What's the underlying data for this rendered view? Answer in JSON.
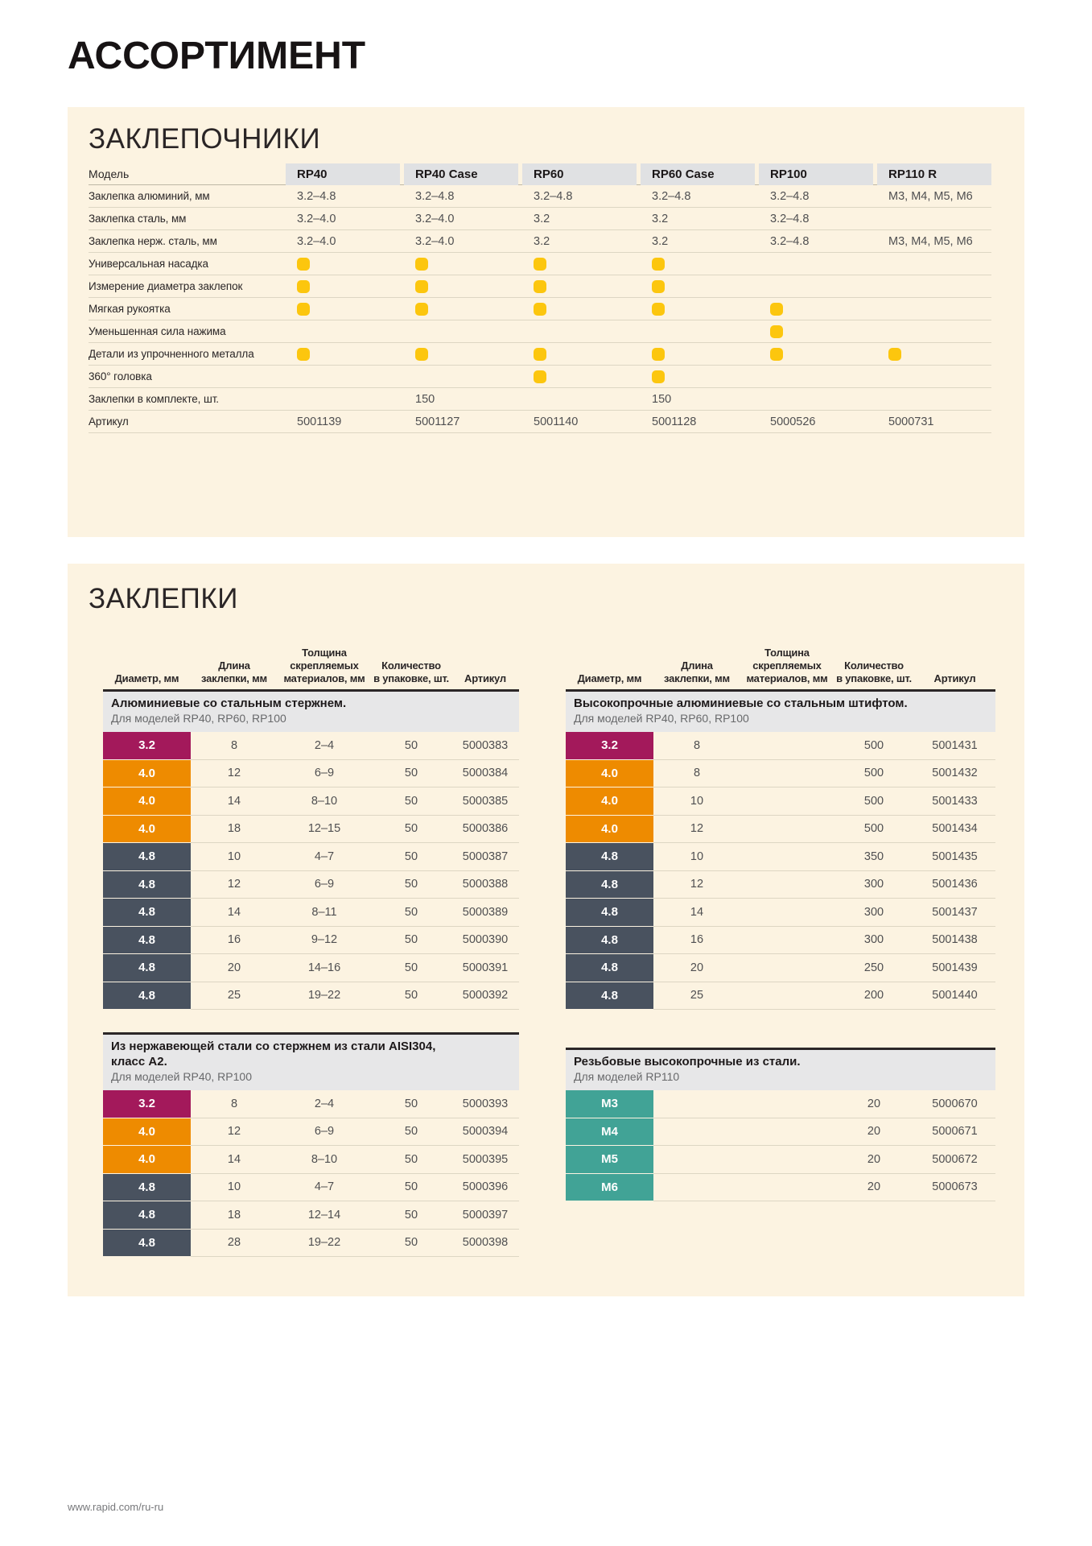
{
  "page": {
    "title": "АССОРТИМЕНТ",
    "footer": "www.rapid.com/ru-ru"
  },
  "colors": {
    "magenta": "#a3195b",
    "orange": "#ee8b00",
    "slate": "#49525f",
    "teal": "#41a396",
    "dot": "#fcc60e"
  },
  "riveters": {
    "heading": "ЗАКЛЕПОЧНИКИ",
    "model_label": "Модель",
    "models": [
      "RP40",
      "RP40 Case",
      "RP60",
      "RP60 Case",
      "RP100",
      "RP110 R"
    ],
    "rows": [
      {
        "label": "Заклепка алюминий, мм",
        "kind": "text",
        "values": [
          "3.2–4.8",
          "3.2–4.8",
          "3.2–4.8",
          "3.2–4.8",
          "3.2–4.8",
          "M3, M4, M5, M6"
        ]
      },
      {
        "label": "Заклепка сталь, мм",
        "kind": "text",
        "values": [
          "3.2–4.0",
          "3.2–4.0",
          "3.2",
          "3.2",
          "3.2–4.8",
          ""
        ]
      },
      {
        "label": "Заклепка нерж. сталь, мм",
        "kind": "text",
        "values": [
          "3.2–4.0",
          "3.2–4.0",
          "3.2",
          "3.2",
          "3.2–4.8",
          "M3, M4, M5, M6"
        ]
      },
      {
        "label": "Универсальная насадка",
        "kind": "dots",
        "values": [
          true,
          true,
          true,
          true,
          false,
          false
        ]
      },
      {
        "label": "Измерение диаметра заклепок",
        "kind": "dots",
        "values": [
          true,
          true,
          true,
          true,
          false,
          false
        ]
      },
      {
        "label": "Мягкая рукоятка",
        "kind": "dots",
        "values": [
          true,
          true,
          true,
          true,
          true,
          false
        ]
      },
      {
        "label": "Уменьшенная сила нажима",
        "kind": "dots",
        "values": [
          false,
          false,
          false,
          false,
          true,
          false
        ]
      },
      {
        "label": "Детали из упрочненного металла",
        "kind": "dots",
        "values": [
          true,
          true,
          true,
          true,
          true,
          true
        ]
      },
      {
        "label": "360° головка",
        "kind": "dots",
        "values": [
          false,
          false,
          true,
          true,
          false,
          false
        ]
      },
      {
        "label": "Заклепки в комплекте, шт.",
        "kind": "text",
        "values": [
          "",
          "150",
          "",
          "150",
          "",
          ""
        ]
      },
      {
        "label": "Артикул",
        "kind": "text",
        "values": [
          "5001139",
          "5001127",
          "5001140",
          "5001128",
          "5000526",
          "5000731"
        ]
      }
    ]
  },
  "rivets": {
    "heading": "ЗАКЛЕПКИ",
    "column_headers": [
      "Диаметр, мм",
      "Длина\nзаклепки, мм",
      "Толщина\nскрепляемых\nматериалов, мм",
      "Количество\nв упаковке, шт.",
      "Артикул"
    ],
    "columns": [
      {
        "side": "left",
        "tables": [
          {
            "title": "Алюминиевые со стальным стержнем.",
            "subtitle": "Для моделей RP40, RP60, RP100",
            "rows": [
              {
                "diameter": "3.2",
                "color": "magenta",
                "length": "8",
                "thickness": "2–4",
                "qty": "50",
                "sku": "5000383"
              },
              {
                "diameter": "4.0",
                "color": "orange",
                "length": "12",
                "thickness": "6–9",
                "qty": "50",
                "sku": "5000384"
              },
              {
                "diameter": "4.0",
                "color": "orange",
                "length": "14",
                "thickness": "8–10",
                "qty": "50",
                "sku": "5000385"
              },
              {
                "diameter": "4.0",
                "color": "orange",
                "length": "18",
                "thickness": "12–15",
                "qty": "50",
                "sku": "5000386"
              },
              {
                "diameter": "4.8",
                "color": "slate",
                "length": "10",
                "thickness": "4–7",
                "qty": "50",
                "sku": "5000387"
              },
              {
                "diameter": "4.8",
                "color": "slate",
                "length": "12",
                "thickness": "6–9",
                "qty": "50",
                "sku": "5000388"
              },
              {
                "diameter": "4.8",
                "color": "slate",
                "length": "14",
                "thickness": "8–11",
                "qty": "50",
                "sku": "5000389"
              },
              {
                "diameter": "4.8",
                "color": "slate",
                "length": "16",
                "thickness": "9–12",
                "qty": "50",
                "sku": "5000390"
              },
              {
                "diameter": "4.8",
                "color": "slate",
                "length": "20",
                "thickness": "14–16",
                "qty": "50",
                "sku": "5000391"
              },
              {
                "diameter": "4.8",
                "color": "slate",
                "length": "25",
                "thickness": "19–22",
                "qty": "50",
                "sku": "5000392"
              }
            ]
          },
          {
            "title": "Из нержавеющей стали со стержнем из стали AISI304,\nкласс А2.",
            "subtitle": "Для моделей RP40, RP100",
            "rows": [
              {
                "diameter": "3.2",
                "color": "magenta",
                "length": "8",
                "thickness": "2–4",
                "qty": "50",
                "sku": "5000393"
              },
              {
                "diameter": "4.0",
                "color": "orange",
                "length": "12",
                "thickness": "6–9",
                "qty": "50",
                "sku": "5000394"
              },
              {
                "diameter": "4.0",
                "color": "orange",
                "length": "14",
                "thickness": "8–10",
                "qty": "50",
                "sku": "5000395"
              },
              {
                "diameter": "4.8",
                "color": "slate",
                "length": "10",
                "thickness": "4–7",
                "qty": "50",
                "sku": "5000396"
              },
              {
                "diameter": "4.8",
                "color": "slate",
                "length": "18",
                "thickness": "12–14",
                "qty": "50",
                "sku": "5000397"
              },
              {
                "diameter": "4.8",
                "color": "slate",
                "length": "28",
                "thickness": "19–22",
                "qty": "50",
                "sku": "5000398"
              }
            ]
          }
        ]
      },
      {
        "side": "right",
        "tables": [
          {
            "title": "Высокопрочные алюминиевые со стальным штифтом.",
            "subtitle": "Для моделей RP40, RP60, RP100",
            "rows": [
              {
                "diameter": "3.2",
                "color": "magenta",
                "length": "8",
                "thickness": "",
                "qty": "500",
                "sku": "5001431"
              },
              {
                "diameter": "4.0",
                "color": "orange",
                "length": "8",
                "thickness": "",
                "qty": "500",
                "sku": "5001432"
              },
              {
                "diameter": "4.0",
                "color": "orange",
                "length": "10",
                "thickness": "",
                "qty": "500",
                "sku": "5001433"
              },
              {
                "diameter": "4.0",
                "color": "orange",
                "length": "12",
                "thickness": "",
                "qty": "500",
                "sku": "5001434"
              },
              {
                "diameter": "4.8",
                "color": "slate",
                "length": "10",
                "thickness": "",
                "qty": "350",
                "sku": "5001435"
              },
              {
                "diameter": "4.8",
                "color": "slate",
                "length": "12",
                "thickness": "",
                "qty": "300",
                "sku": "5001436"
              },
              {
                "diameter": "4.8",
                "color": "slate",
                "length": "14",
                "thickness": "",
                "qty": "300",
                "sku": "5001437"
              },
              {
                "diameter": "4.8",
                "color": "slate",
                "length": "16",
                "thickness": "",
                "qty": "300",
                "sku": "5001438"
              },
              {
                "diameter": "4.8",
                "color": "slate",
                "length": "20",
                "thickness": "",
                "qty": "250",
                "sku": "5001439"
              },
              {
                "diameter": "4.8",
                "color": "slate",
                "length": "25",
                "thickness": "",
                "qty": "200",
                "sku": "5001440"
              }
            ]
          },
          {
            "title": "Резьбовые высокопрочные из стали.",
            "subtitle": "Для моделей RP110",
            "rows": [
              {
                "diameter": "M3",
                "color": "teal",
                "length": "",
                "thickness": "",
                "qty": "20",
                "sku": "5000670"
              },
              {
                "diameter": "M4",
                "color": "teal",
                "length": "",
                "thickness": "",
                "qty": "20",
                "sku": "5000671"
              },
              {
                "diameter": "M5",
                "color": "teal",
                "length": "",
                "thickness": "",
                "qty": "20",
                "sku": "5000672"
              },
              {
                "diameter": "M6",
                "color": "teal",
                "length": "",
                "thickness": "",
                "qty": "20",
                "sku": "5000673"
              }
            ]
          }
        ]
      }
    ]
  }
}
